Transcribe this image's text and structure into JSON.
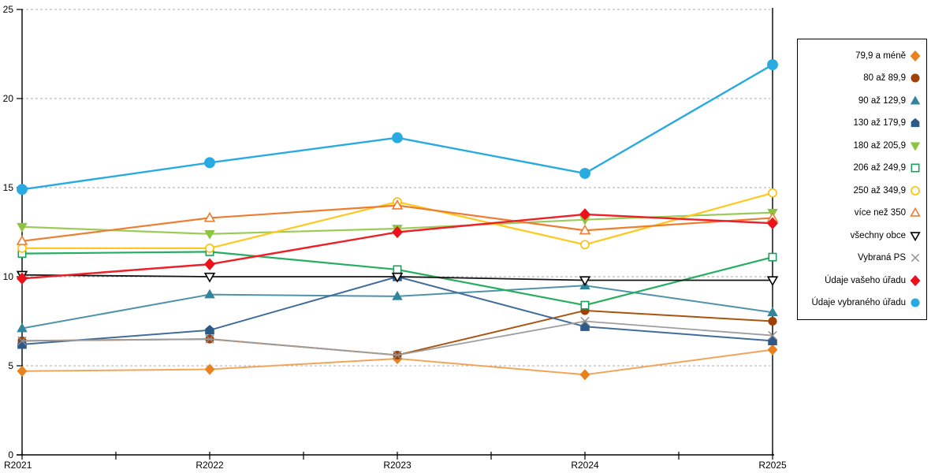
{
  "chart_data": {
    "type": "line",
    "title": "",
    "xlabel": "",
    "ylabel": "",
    "categories": [
      "R2021",
      "R2022",
      "R2023",
      "R2024",
      "R2025"
    ],
    "y_tick_labels": [
      "0",
      "5",
      "10",
      "15",
      "20",
      "25"
    ],
    "y_ticks": [
      0,
      5,
      10,
      15,
      20,
      25
    ],
    "ylim": [
      0,
      25
    ],
    "grid": "horizontal-dashed",
    "gridline_color": "#ababab",
    "legend_position": "right-outside-box",
    "series": [
      {
        "name": "79,9 a méně",
        "marker": "diamond",
        "fill": "filled",
        "color": "#E8821E",
        "line_color": "#F2A55A",
        "line_width": 2,
        "marker_size": 5.5,
        "values": [
          4.7,
          4.8,
          5.4,
          4.5,
          5.9
        ]
      },
      {
        "name": "80 až 89,9",
        "marker": "circle",
        "fill": "filled",
        "color": "#A04108",
        "line_color": "#A9550F",
        "line_width": 2,
        "marker_size": 5.5,
        "values": [
          6.4,
          6.5,
          5.6,
          8.1,
          7.5
        ]
      },
      {
        "name": "90 až 129,9",
        "marker": "triangle-up",
        "fill": "filled",
        "color": "#31859C",
        "line_color": "#4E93A8",
        "line_width": 2,
        "marker_size": 6,
        "values": [
          7.1,
          9.0,
          8.9,
          9.5,
          8.0
        ]
      },
      {
        "name": "130 až 179,9",
        "marker": "pentagon",
        "fill": "filled",
        "color": "#2D5A87",
        "line_color": "#426C9B",
        "line_width": 2,
        "marker_size": 6,
        "values": [
          6.2,
          7.0,
          10.0,
          7.2,
          6.4
        ]
      },
      {
        "name": "180 až 205,9",
        "marker": "triangle-down",
        "fill": "filled",
        "color": "#8CC63F",
        "line_color": "#9CCB5A",
        "line_width": 2.2,
        "marker_size": 6,
        "values": [
          12.8,
          12.4,
          12.7,
          13.2,
          13.6
        ]
      },
      {
        "name": "206 až 249,9",
        "marker": "square",
        "fill": "open",
        "color": "#18A15C",
        "line_color": "#27AE60",
        "line_width": 2.2,
        "marker_size": 5.5,
        "values": [
          11.3,
          11.4,
          10.4,
          8.4,
          11.1
        ]
      },
      {
        "name": "250 až 349,9",
        "marker": "circle",
        "fill": "open",
        "color": "#FFC000",
        "line_color": "#FFC81E",
        "line_width": 2.2,
        "marker_size": 5.5,
        "values": [
          11.6,
          11.6,
          14.2,
          11.8,
          14.7
        ]
      },
      {
        "name": "více než 350",
        "marker": "triangle-up",
        "fill": "open",
        "color": "#ED7D31",
        "line_color": "#ED7D31",
        "line_width": 2.2,
        "marker_size": 6,
        "values": [
          12.0,
          13.3,
          14.0,
          12.6,
          13.3
        ]
      },
      {
        "name": "všechny obce",
        "marker": "triangle-down",
        "fill": "open",
        "color": "#000000",
        "line_color": "#141414",
        "line_width": 1.8,
        "marker_size": 6,
        "values": [
          10.1,
          10.0,
          10.0,
          9.8,
          9.8
        ]
      },
      {
        "name": "Vybraná PS",
        "marker": "x",
        "fill": "open",
        "color": "#8C8C8C",
        "line_color": "#9E9E9E",
        "line_width": 1.8,
        "marker_size": 6,
        "values": [
          6.4,
          6.5,
          5.6,
          7.5,
          6.7
        ]
      },
      {
        "name": "Údaje vašeho úřadu",
        "marker": "diamond",
        "fill": "filled",
        "color": "#EC111A",
        "line_color": "#EC2026",
        "line_width": 2.4,
        "marker_size": 6,
        "values": [
          9.9,
          10.7,
          12.5,
          13.5,
          13.0
        ]
      },
      {
        "name": "Údaje vybraného úřadu",
        "marker": "circle",
        "fill": "filled",
        "color": "#29ABE2",
        "line_color": "#29ABE2",
        "line_width": 2.4,
        "marker_size": 7,
        "values": [
          14.9,
          16.4,
          17.8,
          15.8,
          21.9
        ]
      }
    ]
  },
  "layout_note_values_visible_only": true
}
